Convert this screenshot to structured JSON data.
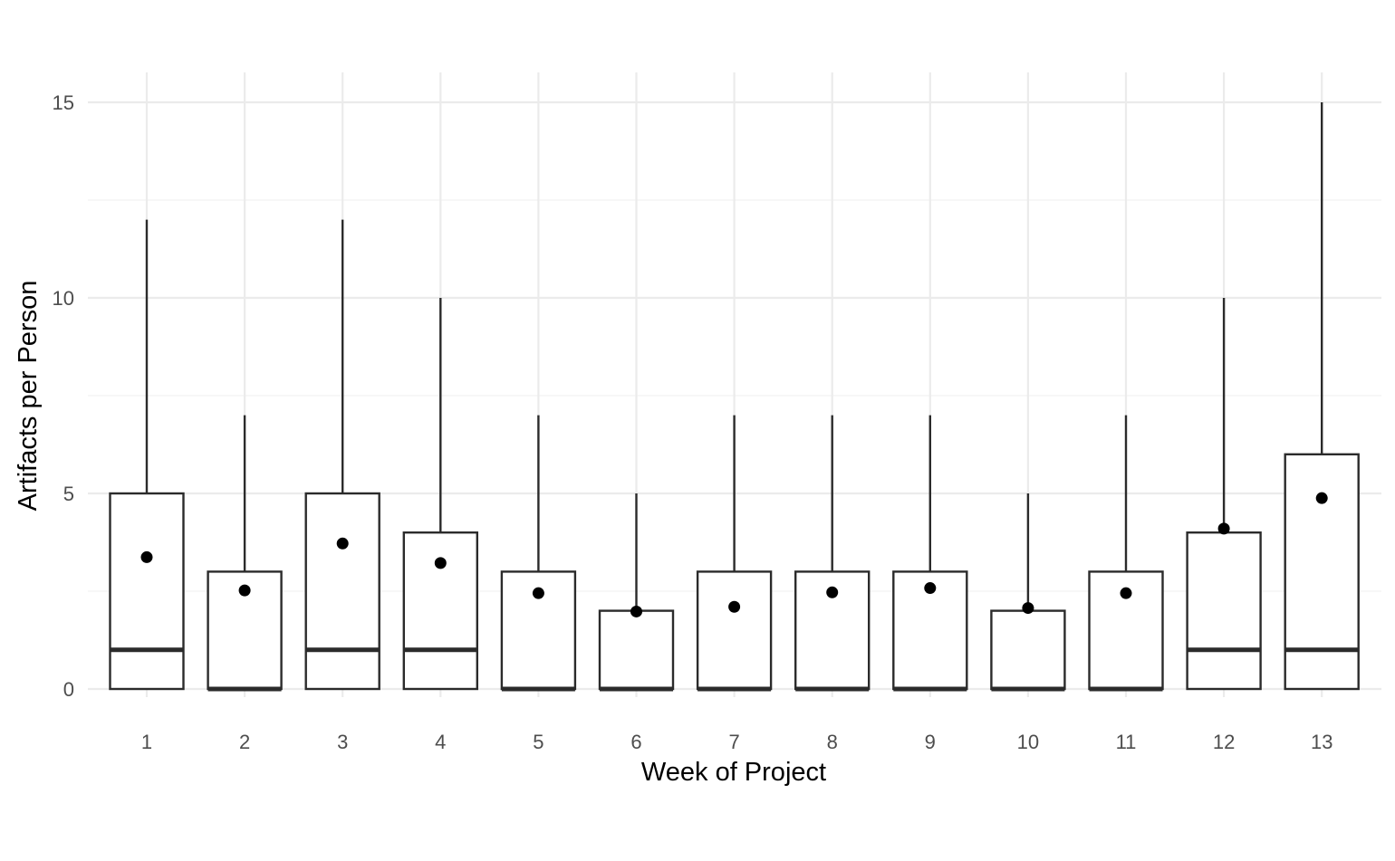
{
  "chart_data": {
    "type": "boxplot",
    "title": "",
    "xlabel": "Week of Project",
    "ylabel": "Artifacts per Person",
    "categories": [
      "1",
      "2",
      "3",
      "4",
      "5",
      "6",
      "7",
      "8",
      "9",
      "10",
      "11",
      "12",
      "13"
    ],
    "ylim": [
      0,
      15
    ],
    "y_ticks": [
      "0",
      "5",
      "10",
      "15"
    ],
    "grid": true,
    "legend": "none",
    "boxes": [
      {
        "category": "1",
        "min": 0,
        "q1": 0,
        "median": 1,
        "q3": 5,
        "max": 12,
        "mean": 3.37
      },
      {
        "category": "2",
        "min": 0,
        "q1": 0,
        "median": 0,
        "q3": 3,
        "max": 7,
        "mean": 2.52
      },
      {
        "category": "3",
        "min": 0,
        "q1": 0,
        "median": 1,
        "q3": 5,
        "max": 12,
        "mean": 3.72
      },
      {
        "category": "4",
        "min": 0,
        "q1": 0,
        "median": 1,
        "q3": 4,
        "max": 10,
        "mean": 3.22
      },
      {
        "category": "5",
        "min": 0,
        "q1": 0,
        "median": 0,
        "q3": 3,
        "max": 7,
        "mean": 2.45
      },
      {
        "category": "6",
        "min": 0,
        "q1": 0,
        "median": 0,
        "q3": 2,
        "max": 5,
        "mean": 1.98
      },
      {
        "category": "7",
        "min": 0,
        "q1": 0,
        "median": 0,
        "q3": 3,
        "max": 7,
        "mean": 2.1
      },
      {
        "category": "8",
        "min": 0,
        "q1": 0,
        "median": 0,
        "q3": 3,
        "max": 7,
        "mean": 2.47
      },
      {
        "category": "9",
        "min": 0,
        "q1": 0,
        "median": 0,
        "q3": 3,
        "max": 7,
        "mean": 2.58
      },
      {
        "category": "10",
        "min": 0,
        "q1": 0,
        "median": 0,
        "q3": 2,
        "max": 5,
        "mean": 2.07
      },
      {
        "category": "11",
        "min": 0,
        "q1": 0,
        "median": 0,
        "q3": 3,
        "max": 7,
        "mean": 2.45
      },
      {
        "category": "12",
        "min": 0,
        "q1": 0,
        "median": 1,
        "q3": 4,
        "max": 10,
        "mean": 4.1
      },
      {
        "category": "13",
        "min": 0,
        "q1": 0,
        "median": 1,
        "q3": 6,
        "max": 15,
        "mean": 4.88
      }
    ]
  }
}
